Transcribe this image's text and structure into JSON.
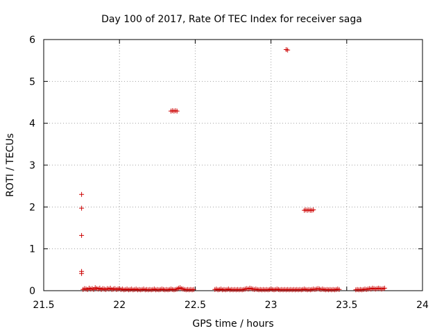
{
  "chart_data": {
    "type": "scatter",
    "title": "Day 100 of 2017, Rate Of TEC Index for receiver saga",
    "xlabel": "GPS time / hours",
    "ylabel": "ROTI / TECUs",
    "xlim": [
      21.5,
      24
    ],
    "ylim": [
      0,
      6
    ],
    "xticks": [
      "21.5",
      "22",
      "22.5",
      "23",
      "23.5",
      "24"
    ],
    "yticks": [
      "0",
      "1",
      "2",
      "3",
      "4",
      "5",
      "6"
    ],
    "grid": true,
    "marker": "+",
    "series": [
      {
        "color": "#cc0000",
        "points": [
          [
            21.75,
            2.3
          ],
          [
            21.75,
            1.97
          ],
          [
            21.75,
            1.32
          ],
          [
            21.75,
            0.46
          ],
          [
            21.75,
            0.41
          ],
          [
            21.76,
            0.03
          ],
          [
            21.77,
            0.05
          ],
          [
            21.78,
            0.04
          ],
          [
            21.79,
            0.03
          ],
          [
            21.8,
            0.06
          ],
          [
            21.81,
            0.04
          ],
          [
            21.82,
            0.05
          ],
          [
            21.83,
            0.03
          ],
          [
            21.84,
            0.07
          ],
          [
            21.85,
            0.05
          ],
          [
            21.86,
            0.04
          ],
          [
            21.87,
            0.06
          ],
          [
            21.88,
            0.03
          ],
          [
            21.89,
            0.05
          ],
          [
            21.9,
            0.04
          ],
          [
            21.91,
            0.03
          ],
          [
            21.92,
            0.05
          ],
          [
            21.93,
            0.04
          ],
          [
            21.94,
            0.06
          ],
          [
            21.95,
            0.03
          ],
          [
            21.96,
            0.04
          ],
          [
            21.97,
            0.05
          ],
          [
            21.98,
            0.03
          ],
          [
            21.99,
            0.04
          ],
          [
            22.0,
            0.05
          ],
          [
            22.01,
            0.03
          ],
          [
            22.02,
            0.04
          ],
          [
            22.03,
            0.02
          ],
          [
            22.04,
            0.03
          ],
          [
            22.05,
            0.04
          ],
          [
            22.06,
            0.02
          ],
          [
            22.07,
            0.03
          ],
          [
            22.08,
            0.04
          ],
          [
            22.09,
            0.02
          ],
          [
            22.1,
            0.03
          ],
          [
            22.11,
            0.04
          ],
          [
            22.12,
            0.02
          ],
          [
            22.13,
            0.03
          ],
          [
            22.14,
            0.02
          ],
          [
            22.15,
            0.03
          ],
          [
            22.16,
            0.04
          ],
          [
            22.17,
            0.02
          ],
          [
            22.18,
            0.03
          ],
          [
            22.19,
            0.02
          ],
          [
            22.2,
            0.03
          ],
          [
            22.21,
            0.02
          ],
          [
            22.22,
            0.03
          ],
          [
            22.23,
            0.04
          ],
          [
            22.24,
            0.02
          ],
          [
            22.25,
            0.03
          ],
          [
            22.26,
            0.02
          ],
          [
            22.27,
            0.03
          ],
          [
            22.28,
            0.04
          ],
          [
            22.29,
            0.03
          ],
          [
            22.3,
            0.02
          ],
          [
            22.31,
            0.03
          ],
          [
            22.32,
            0.02
          ],
          [
            22.33,
            0.03
          ],
          [
            22.34,
            0.04
          ],
          [
            22.35,
            0.03
          ],
          [
            22.36,
            0.02
          ],
          [
            22.37,
            0.03
          ],
          [
            22.38,
            0.04
          ],
          [
            22.39,
            0.06
          ],
          [
            22.4,
            0.07
          ],
          [
            22.41,
            0.05
          ],
          [
            22.42,
            0.04
          ],
          [
            22.43,
            0.03
          ],
          [
            22.44,
            0.02
          ],
          [
            22.45,
            0.03
          ],
          [
            22.46,
            0.02
          ],
          [
            22.47,
            0.03
          ],
          [
            22.48,
            0.02
          ],
          [
            22.49,
            0.03
          ],
          [
            22.34,
            4.29
          ],
          [
            22.35,
            4.3
          ],
          [
            22.36,
            4.29
          ],
          [
            22.37,
            4.3
          ],
          [
            22.38,
            4.29
          ],
          [
            22.63,
            0.03
          ],
          [
            22.64,
            0.04
          ],
          [
            22.65,
            0.02
          ],
          [
            22.66,
            0.03
          ],
          [
            22.67,
            0.04
          ],
          [
            22.68,
            0.02
          ],
          [
            22.69,
            0.03
          ],
          [
            22.7,
            0.02
          ],
          [
            22.71,
            0.03
          ],
          [
            22.72,
            0.04
          ],
          [
            22.73,
            0.02
          ],
          [
            22.74,
            0.03
          ],
          [
            22.75,
            0.02
          ],
          [
            22.76,
            0.03
          ],
          [
            22.77,
            0.02
          ],
          [
            22.78,
            0.03
          ],
          [
            22.79,
            0.02
          ],
          [
            22.8,
            0.03
          ],
          [
            22.81,
            0.02
          ],
          [
            22.82,
            0.03
          ],
          [
            22.83,
            0.04
          ],
          [
            22.84,
            0.05
          ],
          [
            22.85,
            0.04
          ],
          [
            22.86,
            0.06
          ],
          [
            22.87,
            0.05
          ],
          [
            22.88,
            0.04
          ],
          [
            22.89,
            0.03
          ],
          [
            22.9,
            0.04
          ],
          [
            22.91,
            0.03
          ],
          [
            22.92,
            0.02
          ],
          [
            22.93,
            0.03
          ],
          [
            22.94,
            0.02
          ],
          [
            22.95,
            0.03
          ],
          [
            22.96,
            0.02
          ],
          [
            22.97,
            0.03
          ],
          [
            22.98,
            0.02
          ],
          [
            22.99,
            0.03
          ],
          [
            23.0,
            0.04
          ],
          [
            23.01,
            0.03
          ],
          [
            23.02,
            0.02
          ],
          [
            23.03,
            0.03
          ],
          [
            23.04,
            0.04
          ],
          [
            23.05,
            0.03
          ],
          [
            23.06,
            0.02
          ],
          [
            23.07,
            0.03
          ],
          [
            23.08,
            0.02
          ],
          [
            23.09,
            0.03
          ],
          [
            23.1,
            0.02
          ],
          [
            23.11,
            0.03
          ],
          [
            23.12,
            0.02
          ],
          [
            23.13,
            0.03
          ],
          [
            23.14,
            0.02
          ],
          [
            23.15,
            0.03
          ],
          [
            23.16,
            0.02
          ],
          [
            23.17,
            0.03
          ],
          [
            23.18,
            0.02
          ],
          [
            23.19,
            0.03
          ],
          [
            23.2,
            0.02
          ],
          [
            23.21,
            0.03
          ],
          [
            23.22,
            0.04
          ],
          [
            23.23,
            0.03
          ],
          [
            23.24,
            0.02
          ],
          [
            23.25,
            0.03
          ],
          [
            23.26,
            0.02
          ],
          [
            23.27,
            0.03
          ],
          [
            23.28,
            0.04
          ],
          [
            23.29,
            0.03
          ],
          [
            23.3,
            0.04
          ],
          [
            23.31,
            0.05
          ],
          [
            23.32,
            0.04
          ],
          [
            23.33,
            0.03
          ],
          [
            23.34,
            0.04
          ],
          [
            23.35,
            0.03
          ],
          [
            23.36,
            0.02
          ],
          [
            23.37,
            0.03
          ],
          [
            23.38,
            0.02
          ],
          [
            23.39,
            0.03
          ],
          [
            23.4,
            0.02
          ],
          [
            23.41,
            0.03
          ],
          [
            23.42,
            0.02
          ],
          [
            23.43,
            0.03
          ],
          [
            23.44,
            0.04
          ],
          [
            23.45,
            0.03
          ],
          [
            23.1,
            5.76
          ],
          [
            23.11,
            5.75
          ],
          [
            23.22,
            1.92
          ],
          [
            23.23,
            1.93
          ],
          [
            23.24,
            1.92
          ],
          [
            23.25,
            1.93
          ],
          [
            23.26,
            1.92
          ],
          [
            23.27,
            1.92
          ],
          [
            23.28,
            1.93
          ],
          [
            23.56,
            0.02
          ],
          [
            23.57,
            0.03
          ],
          [
            23.58,
            0.02
          ],
          [
            23.59,
            0.03
          ],
          [
            23.6,
            0.02
          ],
          [
            23.61,
            0.03
          ],
          [
            23.62,
            0.04
          ],
          [
            23.63,
            0.03
          ],
          [
            23.64,
            0.04
          ],
          [
            23.65,
            0.05
          ],
          [
            23.66,
            0.04
          ],
          [
            23.67,
            0.06
          ],
          [
            23.68,
            0.05
          ],
          [
            23.69,
            0.04
          ],
          [
            23.7,
            0.05
          ],
          [
            23.71,
            0.06
          ],
          [
            23.72,
            0.05
          ],
          [
            23.73,
            0.04
          ],
          [
            23.74,
            0.05
          ],
          [
            23.75,
            0.06
          ]
        ]
      }
    ]
  }
}
